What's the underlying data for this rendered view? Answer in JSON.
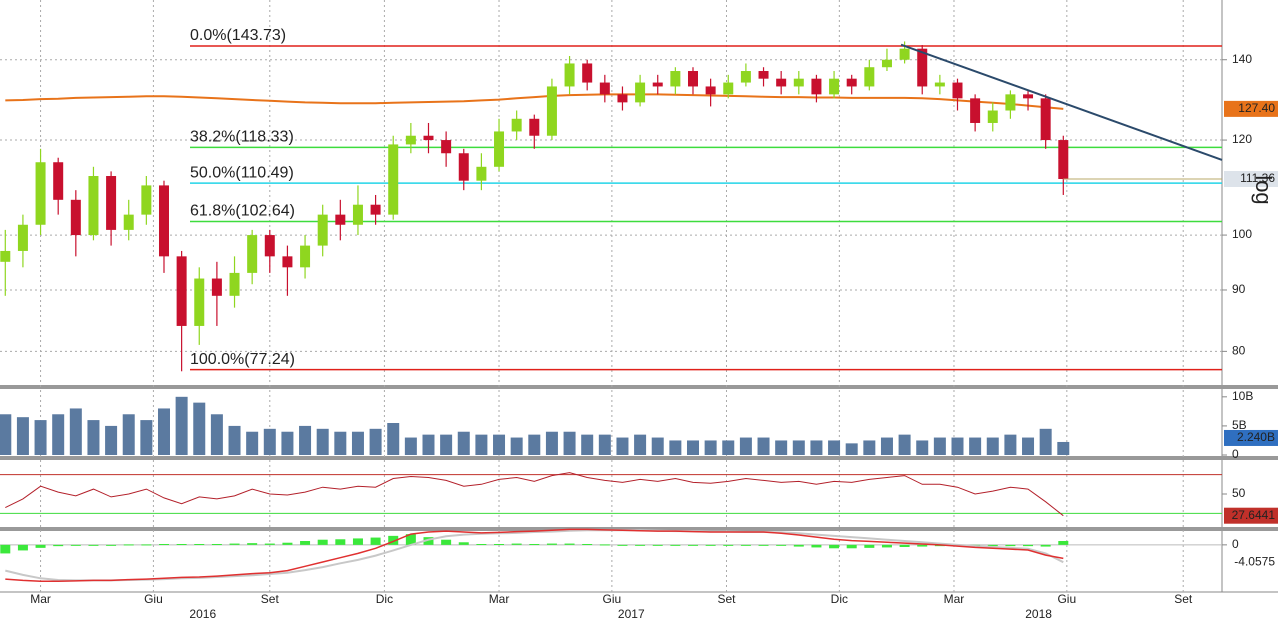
{
  "chart_data": [
    {
      "type": "candlestick",
      "yscale": "log",
      "yscale_label": "log",
      "grid": true,
      "xlim": [
        -0.3,
        69
      ],
      "ylim": [
        75,
        157
      ],
      "yticks": [
        80,
        90,
        100,
        120,
        140
      ],
      "xticks": [
        {
          "value": 2,
          "label": "Mar"
        },
        {
          "value": 8.4,
          "label": "Giu"
        },
        {
          "value": 15,
          "label": "Set"
        },
        {
          "value": 21.5,
          "label": "Dic"
        },
        {
          "value": 28,
          "label": "Mar"
        },
        {
          "value": 34.4,
          "label": "Giu"
        },
        {
          "value": 40.9,
          "label": "Set"
        },
        {
          "value": 47.3,
          "label": "Dic"
        },
        {
          "value": 53.8,
          "label": "Mar"
        },
        {
          "value": 60.2,
          "label": "Giu"
        },
        {
          "value": 66.8,
          "label": "Set"
        }
      ],
      "year_ticks": [
        {
          "value": 11.2,
          "label": "2016"
        },
        {
          "value": 35.5,
          "label": "2017"
        },
        {
          "value": 58.6,
          "label": "2018"
        }
      ],
      "up_color": "#8fd61f",
      "down_color": "#c8102e",
      "open": [
        95,
        97,
        102,
        115,
        107,
        100,
        112,
        101,
        104,
        110,
        96,
        84,
        92,
        89,
        93,
        100,
        96,
        94,
        98,
        104,
        102,
        106,
        104,
        119,
        121,
        120,
        117,
        111,
        114,
        122,
        125,
        121,
        133,
        139,
        134,
        131,
        129,
        134,
        133,
        137,
        133,
        131,
        134,
        137,
        135,
        133,
        135,
        131,
        135,
        133,
        138,
        140,
        143,
        133,
        134,
        130,
        124,
        127,
        131,
        130,
        120
      ],
      "high": [
        101,
        104,
        118,
        116,
        109,
        114,
        113,
        107,
        112,
        111,
        97,
        94,
        95,
        96,
        101,
        101,
        98,
        100,
        106,
        107,
        110,
        108,
        121,
        124,
        124,
        122,
        118,
        117,
        125,
        127,
        126,
        135,
        141,
        140,
        136,
        133,
        136,
        136,
        138,
        138,
        135,
        136,
        139,
        138,
        137,
        137,
        136,
        137,
        136,
        140,
        143,
        145,
        144,
        136,
        135,
        131,
        129,
        132,
        132,
        131,
        121
      ],
      "low": [
        89,
        94,
        100,
        104,
        96,
        99,
        98,
        99,
        102,
        93,
        77,
        81,
        84,
        87,
        91,
        93,
        89,
        92,
        96,
        99,
        100,
        102,
        103,
        117,
        117,
        114,
        109,
        109,
        113,
        120,
        118,
        120,
        131,
        132,
        129,
        127,
        128,
        131,
        131,
        131,
        128,
        130,
        133,
        133,
        131,
        131,
        129,
        130,
        131,
        132,
        137,
        139,
        131,
        131,
        127,
        122,
        122,
        125,
        127,
        118,
        108
      ],
      "close": [
        97,
        102,
        115,
        107,
        100,
        112,
        101,
        104,
        110,
        96,
        84,
        92,
        89,
        93,
        100,
        96,
        94,
        98,
        104,
        102,
        106,
        104,
        119,
        121,
        120,
        117,
        111,
        114,
        122,
        125,
        121,
        133,
        139,
        134,
        131,
        129,
        134,
        133,
        137,
        133,
        131,
        134,
        137,
        135,
        133,
        135,
        131,
        135,
        133,
        138,
        140,
        143,
        133,
        134,
        130,
        124,
        127,
        131,
        130,
        120,
        111.36
      ],
      "ma": {
        "color": "#e8731a",
        "values": [
          129.5,
          129.6,
          129.8,
          129.9,
          130.1,
          130.2,
          130.3,
          130.4,
          130.5,
          130.5,
          130.4,
          130.2,
          130,
          129.8,
          129.6,
          129.4,
          129.2,
          129,
          128.9,
          128.8,
          128.8,
          128.8,
          128.9,
          129,
          129.1,
          129.2,
          129.3,
          129.5,
          129.7,
          130,
          130.3,
          130.6,
          130.8,
          130.9,
          131,
          131,
          131,
          131,
          130.9,
          130.8,
          130.7,
          130.6,
          130.5,
          130.4,
          130.3,
          130.3,
          130.2,
          130.2,
          130.1,
          130.1,
          130.1,
          130.1,
          130,
          129.8,
          129.5,
          129.2,
          128.9,
          128.6,
          128.2,
          127.8,
          127.4
        ],
        "last_label": "127.40"
      },
      "trendline": {
        "color": "#2b4a6b",
        "x": [
          50.8,
          69
        ],
        "y": [
          144.1,
          115.5
        ]
      },
      "levels": [
        {
          "value": 143.73,
          "label": "0.0%(143.73)",
          "color": "#e0201a"
        },
        {
          "value": 118.33,
          "label": "38.2%(118.33)",
          "color": "#3ddc3d"
        },
        {
          "value": 110.49,
          "label": "50.0%(110.49)",
          "color": "#22d4e8"
        },
        {
          "value": 102.64,
          "label": "61.8%(102.64)",
          "color": "#3ddc3d"
        },
        {
          "value": 77.24,
          "label": "100.0%(77.24)",
          "color": "#e0201a"
        }
      ]
    },
    {
      "type": "bar",
      "color": "#5b7aa0",
      "ylim": [
        0,
        11
      ],
      "yticks": [
        0,
        {
          "value": 5,
          "label": "5B"
        },
        {
          "value": 10,
          "label": "10B"
        }
      ],
      "values": [
        7,
        6.5,
        6,
        7,
        8,
        6,
        5,
        7,
        6,
        8,
        10,
        9,
        7,
        5,
        4,
        4.5,
        4,
        5,
        4.5,
        4,
        4,
        4.5,
        5.5,
        3,
        3.5,
        3.5,
        4,
        3.5,
        3.5,
        3,
        3.5,
        4,
        4,
        3.5,
        3.5,
        3,
        3.5,
        3,
        2.5,
        2.5,
        2.5,
        2.5,
        3,
        3,
        2.5,
        2.5,
        2.5,
        2.5,
        2,
        2.5,
        3,
        3.5,
        2.5,
        3,
        3,
        3,
        3,
        3.5,
        3,
        4.5,
        2.24
      ],
      "last_label": "2.240B"
    },
    {
      "type": "line",
      "color": "#b3202a",
      "ylim": [
        16,
        84
      ],
      "yticks": [
        50
      ],
      "upper": 70,
      "lower": 30,
      "values": [
        36,
        45,
        58,
        52,
        48,
        55,
        47,
        50,
        55,
        46,
        40,
        47,
        45,
        48,
        55,
        50,
        49,
        52,
        57,
        55,
        58,
        57,
        66,
        68,
        67,
        64,
        58,
        60,
        65,
        67,
        63,
        69,
        72,
        67,
        64,
        62,
        65,
        63,
        66,
        62,
        61,
        63,
        66,
        64,
        62,
        63,
        60,
        63,
        62,
        65,
        67,
        69,
        60,
        60,
        57,
        50,
        53,
        57,
        55,
        42,
        27.6441
      ]
    },
    {
      "type": "macd",
      "ylim": [
        -11,
        3
      ],
      "yticks": [
        0
      ],
      "hist_color": "#3be83b",
      "macd_color": "#e03030",
      "signal_color": "#c8c8c8",
      "hist": [
        -2,
        -1.3,
        -0.7,
        -0.3,
        -0.1,
        0,
        0,
        0.1,
        0.1,
        0.2,
        0.2,
        0.2,
        0.2,
        0.3,
        0.4,
        0.3,
        0.5,
        0.9,
        1.2,
        1.3,
        1.5,
        1.7,
        2.1,
        2.5,
        1.8,
        1.2,
        0.6,
        0.2,
        0.2,
        0.3,
        0.2,
        0.3,
        0.3,
        0.2,
        0.1,
        0,
        -0.1,
        -0.1,
        0,
        -0.1,
        -0.1,
        -0.1,
        0,
        0,
        -0.2,
        -0.4,
        -0.6,
        -0.8,
        -0.8,
        -0.7,
        -0.6,
        -0.5,
        -0.4,
        -0.3,
        -0.3,
        -0.3,
        -0.3,
        -0.3,
        -0.3,
        -0.4,
        0.9
      ],
      "macd": [
        -8,
        -8.3,
        -8.5,
        -8.5,
        -8.4,
        -8.3,
        -8.3,
        -8.1,
        -8,
        -7.8,
        -7.6,
        -7.5,
        -7.3,
        -7,
        -6.7,
        -6.5,
        -6,
        -5,
        -4,
        -3,
        -2,
        -0.8,
        0.8,
        2.5,
        3,
        3.2,
        3,
        2.8,
        2.9,
        3.1,
        3.2,
        3.4,
        3.6,
        3.6,
        3.5,
        3.4,
        3.3,
        3.2,
        3.2,
        3.1,
        3,
        3,
        3,
        3,
        2.7,
        2.3,
        1.8,
        1.3,
        1,
        0.8,
        0.6,
        0.4,
        0.2,
        0,
        -0.3,
        -0.6,
        -0.8,
        -1,
        -1.2,
        -2.4,
        -3.16
      ],
      "signal": [
        -6,
        -7,
        -7.8,
        -8.2,
        -8.3,
        -8.3,
        -8.3,
        -8.2,
        -8.1,
        -8,
        -7.8,
        -7.7,
        -7.5,
        -7.3,
        -7.1,
        -6.8,
        -6.5,
        -5.9,
        -5.2,
        -4.3,
        -3.5,
        -2.5,
        -1.3,
        0,
        1.2,
        2,
        2.4,
        2.6,
        2.7,
        2.8,
        3,
        3.1,
        3.3,
        3.4,
        3.4,
        3.4,
        3.4,
        3.3,
        3.2,
        3.2,
        3.1,
        3.1,
        3,
        3,
        2.9,
        2.7,
        2.4,
        2.1,
        1.8,
        1.5,
        1.2,
        0.9,
        0.6,
        0.3,
        0,
        -0.3,
        -0.5,
        -0.7,
        -0.9,
        -2,
        -4.0575
      ]
    }
  ]
}
